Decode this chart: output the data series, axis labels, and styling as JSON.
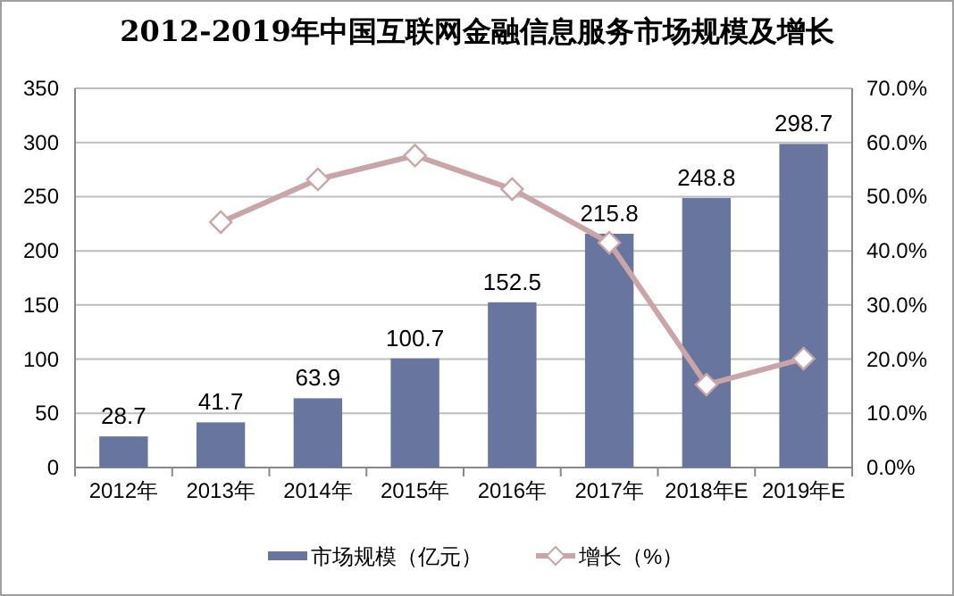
{
  "chart_data": {
    "type": "bar",
    "title": "2012-2019年中国互联网金融信息服务市场规模及增长",
    "categories": [
      "2012年",
      "2013年",
      "2014年",
      "2015年",
      "2016年",
      "2017年",
      "2018年E",
      "2019年E"
    ],
    "series": [
      {
        "name": "市场规模（亿元）",
        "color": "#68759f",
        "values": [
          28.7,
          41.7,
          63.9,
          100.7,
          152.5,
          215.8,
          248.8,
          298.7
        ],
        "value_labels": [
          "28.7",
          "41.7",
          "63.9",
          "100.7",
          "152.5",
          "215.8",
          "248.8",
          "298.7"
        ]
      },
      {
        "name": "增长（%）",
        "type": "line",
        "axis": "y2",
        "color": "#c9a5a8",
        "marker": "diamond",
        "values": [
          null,
          45.3,
          53.2,
          57.6,
          51.4,
          41.5,
          15.3,
          20.1
        ]
      }
    ],
    "ylim": [
      0,
      350
    ],
    "yticks": [
      0,
      50,
      100,
      150,
      200,
      250,
      300,
      350
    ],
    "y2lim": [
      0,
      70
    ],
    "y2ticks": [
      {
        "value": 0,
        "label": "0.0%"
      },
      {
        "value": 10,
        "label": "10.0%"
      },
      {
        "value": 20,
        "label": "20.0%"
      },
      {
        "value": 30,
        "label": "30.0%"
      },
      {
        "value": 40,
        "label": "40.0%"
      },
      {
        "value": 50,
        "label": "50.0%"
      },
      {
        "value": 60,
        "label": "60.0%"
      },
      {
        "value": 70,
        "label": "70.0%"
      }
    ],
    "grid": "y",
    "legend": "bottom"
  }
}
